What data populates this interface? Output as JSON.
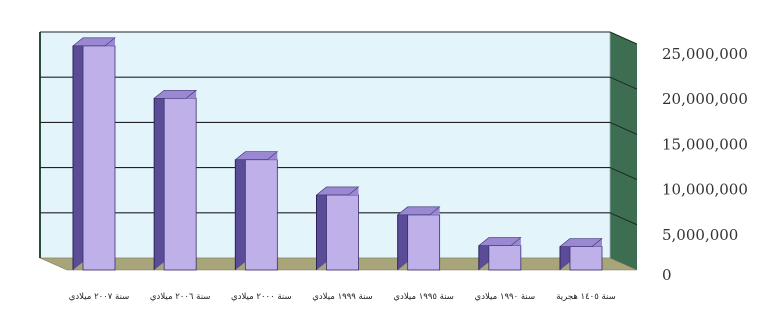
{
  "chart_data": {
    "type": "bar",
    "style": "3d",
    "categories": [
      "سنة ٢٠٠٧ ميلادي",
      "سنة ٢٠٠٦ ميلادي",
      "سنة ٢٠٠٠ ميلادي",
      "سنة ١٩٩٩ ميلادي",
      "سنة ١٩٩٥ ميلادي",
      "سنة ١٩٩٠ ميلادي",
      "سنة ١٤٠٥ هجرية"
    ],
    "values": [
      24800000,
      19000000,
      12200000,
      8300000,
      6100000,
      2700000,
      2600000
    ],
    "y_ticks": [
      "25,000,000",
      "20,000,000",
      "15,000,000",
      "10,000,000",
      "5,000,000",
      "0"
    ],
    "ylim": [
      0,
      25000000
    ],
    "y_axis_side": "right",
    "grid": true,
    "title": "",
    "xlabel": "",
    "ylabel": "",
    "colors": {
      "bar_front": "#bfb0ea",
      "bar_top": "#9a88d2",
      "bar_side": "#5b4c98",
      "back_wall": "#e3f5fb",
      "side_wall": "#3e6e52",
      "floor": "#a9a57a"
    }
  }
}
